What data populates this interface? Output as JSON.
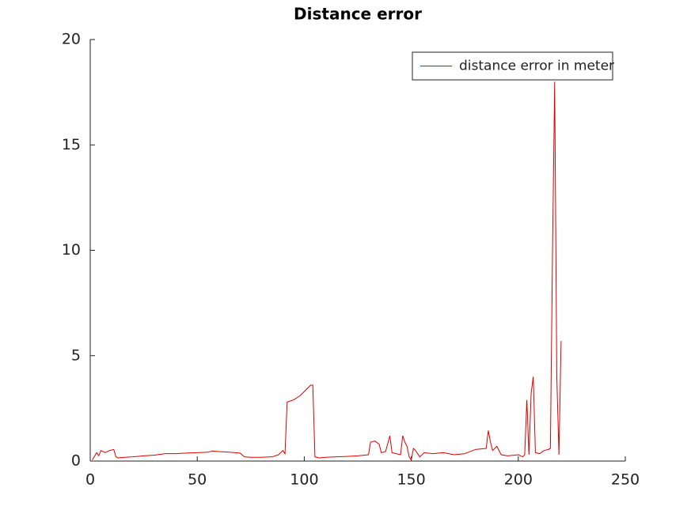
{
  "chart_data": {
    "type": "line",
    "title": "Distance error",
    "x": [
      1,
      3,
      4,
      5,
      7,
      9,
      11,
      12,
      13,
      16,
      20,
      25,
      30,
      35,
      40,
      45,
      50,
      55,
      57,
      60,
      65,
      70,
      72,
      75,
      80,
      85,
      88,
      90,
      91,
      92,
      95,
      98,
      101,
      103,
      104,
      105,
      107,
      110,
      115,
      120,
      125,
      130,
      131,
      133,
      135,
      136,
      138,
      140,
      141,
      143,
      145,
      146,
      147,
      148,
      149,
      150,
      151,
      152,
      154,
      156,
      160,
      165,
      170,
      175,
      180,
      185,
      186,
      187,
      188,
      190,
      192,
      195,
      200,
      202,
      203,
      204,
      205,
      206,
      207,
      208,
      210,
      212,
      214,
      215,
      216,
      217,
      218,
      219,
      220
    ],
    "series": [
      {
        "name": "distance error in meter",
        "color": "#e00000",
        "values": [
          0.05,
          0.4,
          0.25,
          0.5,
          0.4,
          0.5,
          0.55,
          0.2,
          0.15,
          0.18,
          0.2,
          0.25,
          0.28,
          0.35,
          0.35,
          0.38,
          0.4,
          0.42,
          0.48,
          0.45,
          0.42,
          0.38,
          0.2,
          0.18,
          0.18,
          0.2,
          0.3,
          0.5,
          0.35,
          2.8,
          2.9,
          3.1,
          3.4,
          3.6,
          3.6,
          0.2,
          0.15,
          0.18,
          0.2,
          0.22,
          0.25,
          0.3,
          0.9,
          0.95,
          0.8,
          0.4,
          0.45,
          1.2,
          0.4,
          0.35,
          0.3,
          1.2,
          0.9,
          0.7,
          0.2,
          0.05,
          0.6,
          0.5,
          0.2,
          0.4,
          0.35,
          0.4,
          0.3,
          0.35,
          0.55,
          0.6,
          1.45,
          0.9,
          0.5,
          0.7,
          0.3,
          0.25,
          0.3,
          0.2,
          0.3,
          2.9,
          0.3,
          3.2,
          4.0,
          0.4,
          0.35,
          0.5,
          0.55,
          0.6,
          10,
          18.0,
          4,
          0.3,
          5.7
        ]
      }
    ],
    "xlim": [
      0,
      250
    ],
    "xticks": [
      0,
      50,
      100,
      150,
      200,
      250
    ],
    "ylim": [
      0,
      20
    ],
    "yticks": [
      0,
      5,
      10,
      15,
      20
    ],
    "grid": false,
    "legend": "upper right"
  }
}
